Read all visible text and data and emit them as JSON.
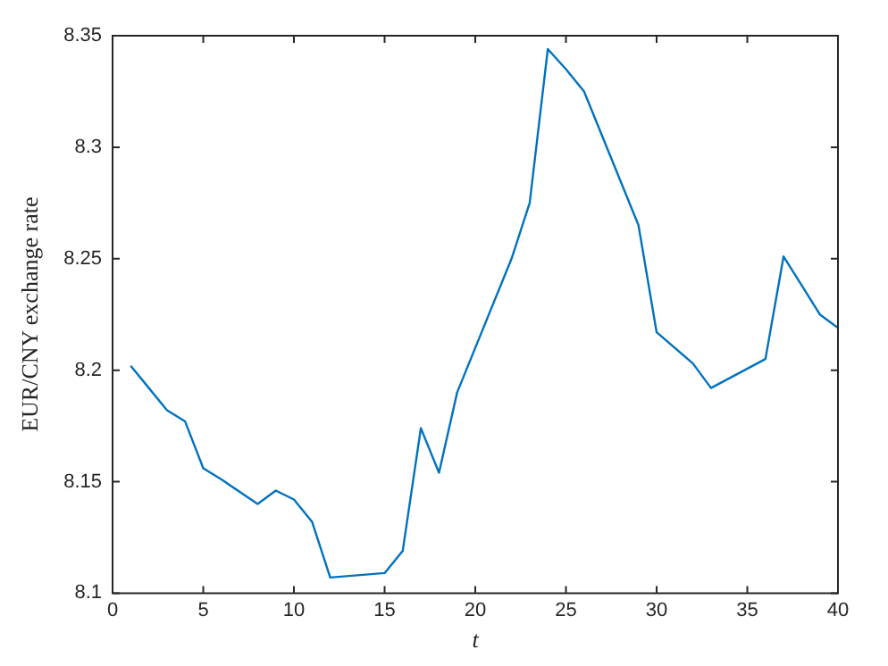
{
  "chart_data": {
    "type": "line",
    "xlabel": "t",
    "ylabel": "EUR/CNY exchange rate",
    "x": [
      1,
      2,
      3,
      4,
      5,
      6,
      8,
      9,
      10,
      11,
      12,
      15,
      16,
      17,
      18,
      19,
      20,
      22,
      23,
      24,
      25,
      26,
      29,
      30,
      32,
      33,
      36,
      37,
      38,
      39,
      40
    ],
    "series": [
      {
        "color": "#0072bd",
        "values": [
          8.202,
          8.192,
          8.182,
          8.177,
          8.156,
          8.151,
          8.14,
          8.146,
          8.142,
          8.132,
          8.107,
          8.109,
          8.119,
          8.174,
          8.154,
          8.19,
          8.21,
          8.25,
          8.275,
          8.344,
          8.335,
          8.325,
          8.265,
          8.217,
          8.203,
          8.192,
          8.205,
          8.251,
          8.238,
          8.225,
          8.219
        ]
      }
    ],
    "xlim": [
      0,
      40
    ],
    "xticks": [
      0,
      5,
      10,
      15,
      20,
      25,
      30,
      35,
      40
    ],
    "ylim": [
      8.1,
      8.35
    ],
    "yticks": [
      8.1,
      8.15,
      8.2,
      8.25,
      8.3,
      8.35
    ],
    "grid": false,
    "legend": false,
    "marker": "none",
    "line_style": "solid"
  }
}
